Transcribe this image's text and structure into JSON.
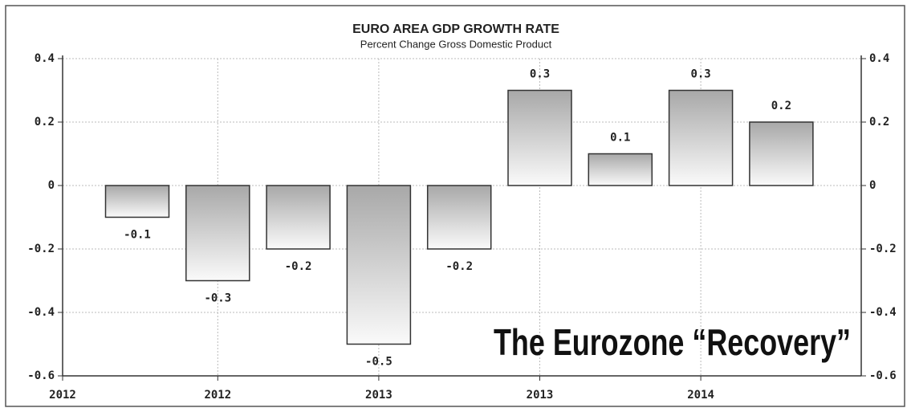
{
  "chart_data": {
    "type": "bar",
    "title": "EURO AREA GDP GROWTH RATE",
    "subtitle": "Percent Change Gross Domestic Product",
    "annotation": "The Eurozone “Recovery”",
    "x_start_label": "2012",
    "categories": [
      null,
      "2012",
      null,
      "2013",
      null,
      "2013",
      null,
      "2014",
      null
    ],
    "values": [
      -0.1,
      -0.3,
      -0.2,
      -0.5,
      -0.2,
      0.3,
      0.1,
      0.3,
      0.2
    ],
    "color": "#b8b8b8",
    "ylim": [
      -0.6,
      0.4
    ],
    "yticks": [
      0.4,
      0.2,
      0,
      -0.2,
      -0.4,
      -0.6
    ],
    "y2lim": [
      -0.6,
      0.4
    ],
    "y2ticks": [
      0.4,
      0.2,
      0,
      -0.2,
      -0.4,
      -0.6
    ],
    "grid": true
  }
}
